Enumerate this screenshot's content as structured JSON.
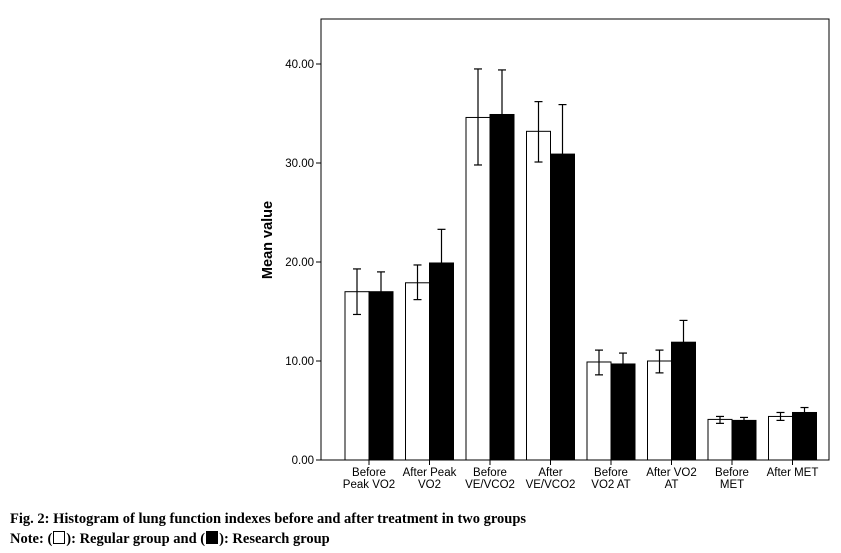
{
  "chart_data": {
    "type": "bar",
    "title": "",
    "xlabel": "",
    "ylabel": "Mean value",
    "ylim": [
      0,
      45
    ],
    "yticks": [
      "0.00",
      "10.00",
      "20.00",
      "30.00",
      "40.00"
    ],
    "grid": false,
    "legend": "none",
    "categories": [
      [
        "Before",
        "Peak VO2"
      ],
      [
        "After Peak",
        "VO2"
      ],
      [
        "Before",
        "VE/VCO2"
      ],
      [
        "After",
        "VE/VCO2"
      ],
      [
        "Before",
        "VO2 AT"
      ],
      [
        "After VO2",
        "AT"
      ],
      [
        "Before",
        "MET"
      ],
      [
        "After MET"
      ]
    ],
    "series": [
      {
        "fill": "#ffffff",
        "values": [
          17.0,
          17.9,
          34.6,
          33.2,
          9.9,
          10.0,
          4.1,
          4.4
        ],
        "err_low": [
          14.7,
          16.2,
          29.8,
          30.1,
          8.6,
          8.8,
          3.7,
          4.0
        ],
        "err_high": [
          19.3,
          19.7,
          39.5,
          36.2,
          11.1,
          11.1,
          4.4,
          4.8
        ]
      },
      {
        "fill": "#000000",
        "values": [
          17.0,
          19.9,
          34.9,
          30.9,
          9.7,
          11.9,
          4.0,
          4.8
        ],
        "err_low": [
          15.0,
          16.7,
          30.6,
          25.9,
          8.6,
          9.8,
          3.7,
          4.2
        ],
        "err_high": [
          19.0,
          23.3,
          39.4,
          35.9,
          10.8,
          14.1,
          4.3,
          5.3
        ]
      }
    ]
  },
  "caption": {
    "title": "Fig. 2: Histogram of lung function indexes before and after treatment in two groups",
    "note_prefix": "Note: (",
    "note_middle": "): Regular group and (",
    "note_suffix": "): Research group"
  }
}
